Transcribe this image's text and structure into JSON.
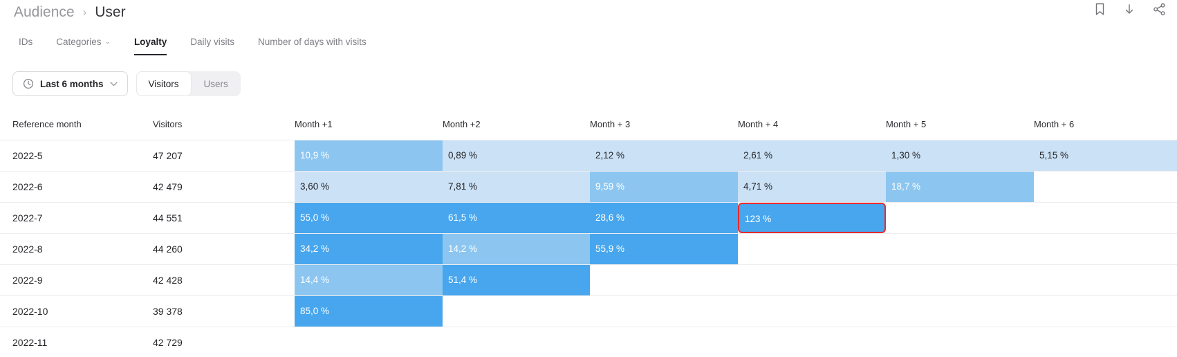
{
  "header": {
    "breadcrumb": {
      "parent": "Audience",
      "separator": "›",
      "current": "User"
    },
    "actions": [
      {
        "name": "bookmark-icon"
      },
      {
        "name": "download-icon"
      },
      {
        "name": "share-icon"
      }
    ]
  },
  "tabs": [
    {
      "label": "IDs",
      "active": false,
      "has_dropdown": false
    },
    {
      "label": "Categories",
      "active": false,
      "has_dropdown": true
    },
    {
      "label": "Loyalty",
      "active": true,
      "has_dropdown": false
    },
    {
      "label": "Daily visits",
      "active": false,
      "has_dropdown": false
    },
    {
      "label": "Number of days with visits",
      "active": false,
      "has_dropdown": false
    }
  ],
  "filters": {
    "period": {
      "icon": "clock-icon",
      "label": "Last 6 months",
      "dropdown_icon": "chevron-down-icon"
    },
    "segments": [
      {
        "label": "Visitors",
        "active": true
      },
      {
        "label": "Users",
        "active": false
      }
    ]
  },
  "table": {
    "columns": [
      "Reference month",
      "Visitors",
      "Month +1",
      "Month +2",
      "Month + 3",
      "Month + 4",
      "Month + 5",
      "Month + 6"
    ],
    "rows": [
      {
        "month": "2022-5",
        "visitors": "47 207",
        "cells": [
          {
            "value": "10,9 %",
            "shade": "medium"
          },
          {
            "value": "0,89 %",
            "shade": "light"
          },
          {
            "value": "2,12 %",
            "shade": "light"
          },
          {
            "value": "2,61 %",
            "shade": "light"
          },
          {
            "value": "1,30 %",
            "shade": "light"
          },
          {
            "value": "5,15 %",
            "shade": "light"
          }
        ]
      },
      {
        "month": "2022-6",
        "visitors": "42 479",
        "cells": [
          {
            "value": "3,60 %",
            "shade": "light"
          },
          {
            "value": "7,81 %",
            "shade": "light"
          },
          {
            "value": "9,59 %",
            "shade": "medium"
          },
          {
            "value": "4,71 %",
            "shade": "light"
          },
          {
            "value": "18,7 %",
            "shade": "medium"
          }
        ]
      },
      {
        "month": "2022-7",
        "visitors": "44 551",
        "cells": [
          {
            "value": "55,0 %",
            "shade": "dark"
          },
          {
            "value": "61,5 %",
            "shade": "dark"
          },
          {
            "value": "28,6 %",
            "shade": "dark"
          },
          {
            "value": "123 %",
            "shade": "dark",
            "highlighted": true
          }
        ]
      },
      {
        "month": "2022-8",
        "visitors": "44 260",
        "cells": [
          {
            "value": "34,2 %",
            "shade": "dark"
          },
          {
            "value": "14,2 %",
            "shade": "medium"
          },
          {
            "value": "55,9 %",
            "shade": "dark"
          }
        ]
      },
      {
        "month": "2022-9",
        "visitors": "42 428",
        "cells": [
          {
            "value": "14,4 %",
            "shade": "medium"
          },
          {
            "value": "51,4 %",
            "shade": "dark"
          }
        ]
      },
      {
        "month": "2022-10",
        "visitors": "39 378",
        "cells": [
          {
            "value": "85,0 %",
            "shade": "dark"
          }
        ]
      },
      {
        "month": "2022-11",
        "visitors": "42 729",
        "cells": []
      }
    ]
  },
  "colors": {
    "cell_light": "#cbe1f5",
    "cell_medium": "#8cc6f0",
    "cell_dark": "#47a6ed",
    "cell_text_dark": "#26262b",
    "cell_text_light": "#ffffff",
    "highlight_border": "#e52b30"
  }
}
